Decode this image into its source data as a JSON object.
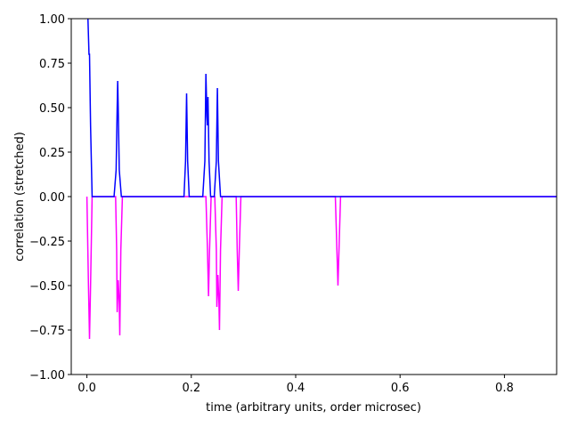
{
  "chart_data": {
    "type": "line",
    "xlabel": "time (arbitrary units, order microsec)",
    "ylabel": "correlation (stretched)",
    "xlim": [
      -0.03,
      0.9
    ],
    "ylim": [
      -1.0,
      1.0
    ],
    "xticks": [
      {
        "value": 0,
        "label": "0.0"
      },
      {
        "value": 0.2,
        "label": "0.2"
      },
      {
        "value": 0.4,
        "label": "0.4"
      },
      {
        "value": 0.6,
        "label": "0.6"
      },
      {
        "value": 0.8,
        "label": "0.8"
      }
    ],
    "yticks": [
      {
        "value": -1,
        "label": "−1.00"
      },
      {
        "value": -0.75,
        "label": "−0.75"
      },
      {
        "value": -0.5,
        "label": "−0.50"
      },
      {
        "value": -0.25,
        "label": "−0.25"
      },
      {
        "value": 0,
        "label": "0.00"
      },
      {
        "value": 0.25,
        "label": "0.25"
      },
      {
        "value": 0.5,
        "label": "0.50"
      },
      {
        "value": 0.75,
        "label": "0.75"
      },
      {
        "value": 1,
        "label": "1.00"
      }
    ],
    "series": [
      {
        "color": "#ff00ff",
        "x": [
          0,
          0.003,
          0.005,
          0.007,
          0.01,
          0.055,
          0.057,
          0.058,
          0.06,
          0.062,
          0.063,
          0.065,
          0.068,
          0.228,
          0.231,
          0.233,
          0.235,
          0.238,
          0.245,
          0.248,
          0.249,
          0.251,
          0.253,
          0.254,
          0.256,
          0.259,
          0.286,
          0.288,
          0.29,
          0.292,
          0.295,
          0.476,
          0.479,
          0.481,
          0.483,
          0.486,
          0.9
        ],
        "values": [
          0,
          -0.5,
          -0.8,
          -0.5,
          0,
          0,
          -0.3,
          -0.65,
          -0.47,
          -0.6,
          -0.78,
          -0.3,
          0,
          0,
          -0.3,
          -0.56,
          -0.3,
          0,
          0,
          -0.3,
          -0.62,
          -0.44,
          -0.6,
          -0.75,
          -0.3,
          0,
          0,
          -0.3,
          -0.53,
          -0.3,
          0,
          0,
          -0.3,
          -0.5,
          -0.3,
          0,
          0
        ]
      },
      {
        "color": "#0000ff",
        "x": [
          0.002,
          0.004,
          0.005,
          0.007,
          0.01,
          0.052,
          0.056,
          0.058,
          0.059,
          0.06,
          0.062,
          0.066,
          0.186,
          0.189,
          0.191,
          0.193,
          0.196,
          0.222,
          0.226,
          0.228,
          0.23,
          0.231,
          0.232,
          0.234,
          0.237,
          0.244,
          0.248,
          0.25,
          0.252,
          0.256,
          0.9
        ],
        "values": [
          1.0,
          0.8,
          0.8,
          0.4,
          0,
          0,
          0.15,
          0.5,
          0.65,
          0.5,
          0.15,
          0,
          0,
          0.2,
          0.58,
          0.2,
          0,
          0,
          0.2,
          0.69,
          0.45,
          0.4,
          0.56,
          0.2,
          0,
          0,
          0.2,
          0.61,
          0.2,
          0,
          0
        ]
      }
    ]
  }
}
